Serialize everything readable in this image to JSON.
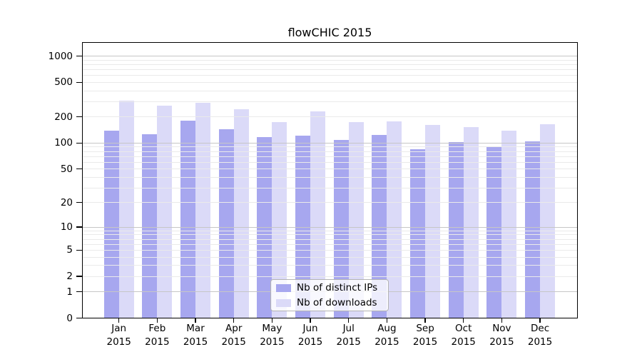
{
  "chart_data": {
    "type": "bar",
    "title": "flowCHIC 2015",
    "categories": [
      "Jan",
      "Feb",
      "Mar",
      "Apr",
      "May",
      "Jun",
      "Jul",
      "Aug",
      "Sep",
      "Oct",
      "Nov",
      "Dec"
    ],
    "xtick_year": "2015",
    "series": [
      {
        "name": "Nb of distinct IPs",
        "color": "#a7a7ef",
        "values": [
          140,
          126,
          181,
          143,
          117,
          121,
          109,
          125,
          85,
          103,
          91,
          105
        ]
      },
      {
        "name": "Nb of downloads",
        "color": "#dbdaf8",
        "values": [
          310,
          272,
          290,
          244,
          176,
          230,
          173,
          178,
          163,
          152,
          140,
          165
        ]
      }
    ],
    "yscale": "symlog",
    "yticks": [
      0,
      1,
      2,
      5,
      10,
      20,
      50,
      100,
      200,
      500,
      1000
    ],
    "ylim": [
      0,
      1430
    ],
    "grid": true,
    "legend_position": "lower center"
  },
  "colors": {
    "background": "#ffffff",
    "bar_distinct_ips": "#a7a7ef",
    "bar_downloads": "#dbdaf8",
    "major_grid": "#c6c6c6",
    "minor_grid": "#eaeaea",
    "axis": "#000000",
    "text": "#000000",
    "legend_border": "#b3b3b3"
  }
}
